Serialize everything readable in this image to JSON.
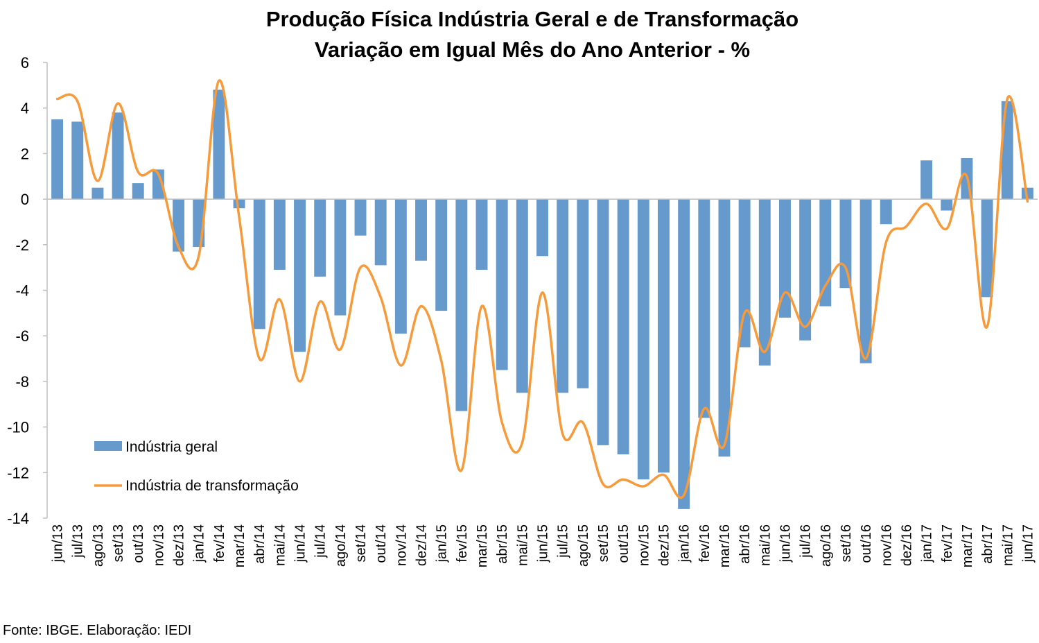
{
  "chart_data": {
    "type": "bar",
    "title": "Produção Física Indústria Geral e de Transformação",
    "subtitle": "Variação em Igual Mês do Ano Anterior - %",
    "ylim": [
      -14,
      6
    ],
    "yticks": [
      "6",
      "4",
      "2",
      "0",
      "-2",
      "-4",
      "-6",
      "-8",
      "-10",
      "-12",
      "-14"
    ],
    "grid": false,
    "legend_position": "lower-left",
    "categories": [
      "jun/13",
      "jul/13",
      "ago/13",
      "set/13",
      "out/13",
      "nov/13",
      "dez/13",
      "jan/14",
      "fev/14",
      "mar/14",
      "abr/14",
      "mai/14",
      "jun/14",
      "jul/14",
      "ago/14",
      "set/14",
      "out/14",
      "nov/14",
      "dez/14",
      "jan/15",
      "fev/15",
      "mar/15",
      "abr/15",
      "mai/15",
      "jun/15",
      "jul/15",
      "ago/15",
      "set/15",
      "out/15",
      "nov/15",
      "dez/15",
      "jan/16",
      "fev/16",
      "mar/16",
      "abr/16",
      "mai/16",
      "jun/16",
      "jul/16",
      "ago/16",
      "set/16",
      "out/16",
      "nov/16",
      "dez/16",
      "jan/17",
      "fev/17",
      "mar/17",
      "abr/17",
      "mai/17",
      "jun/17"
    ],
    "series": [
      {
        "name": "Indústria geral",
        "type": "bar",
        "color": "#6699cc",
        "values": [
          3.5,
          3.4,
          0.5,
          3.8,
          0.7,
          1.3,
          -2.3,
          -2.1,
          4.8,
          -0.4,
          -5.7,
          -3.1,
          -6.7,
          -3.4,
          -5.1,
          -1.6,
          -2.9,
          -5.9,
          -2.7,
          -4.9,
          -9.3,
          -3.1,
          -7.5,
          -8.5,
          -2.5,
          -8.5,
          -8.3,
          -10.8,
          -11.2,
          -12.3,
          -12.0,
          -13.6,
          -9.6,
          -11.3,
          -6.5,
          -7.3,
          -5.2,
          -6.2,
          -4.7,
          -3.9,
          -7.2,
          -1.1,
          0.0,
          1.7,
          -0.5,
          1.8,
          -4.3,
          4.3,
          0.5
        ]
      },
      {
        "name": "Indústria de transformação",
        "type": "line",
        "color": "#f79a3a",
        "values": [
          4.4,
          4.3,
          0.8,
          4.2,
          1.2,
          1.1,
          -2.1,
          -2.5,
          5.2,
          -0.8,
          -7.0,
          -4.4,
          -8.0,
          -4.5,
          -6.6,
          -3.0,
          -4.3,
          -7.3,
          -4.7,
          -7.1,
          -11.9,
          -4.7,
          -9.8,
          -10.7,
          -4.1,
          -10.3,
          -9.8,
          -12.5,
          -12.3,
          -12.6,
          -12.1,
          -13.0,
          -9.2,
          -10.8,
          -5.0,
          -6.7,
          -4.1,
          -5.6,
          -3.8,
          -3.0,
          -7.0,
          -1.9,
          -1.2,
          -0.2,
          -1.3,
          1.0,
          -5.6,
          4.4,
          -0.1
        ]
      }
    ]
  },
  "source": "Fonte: IBGE. Elaboração: IEDI"
}
